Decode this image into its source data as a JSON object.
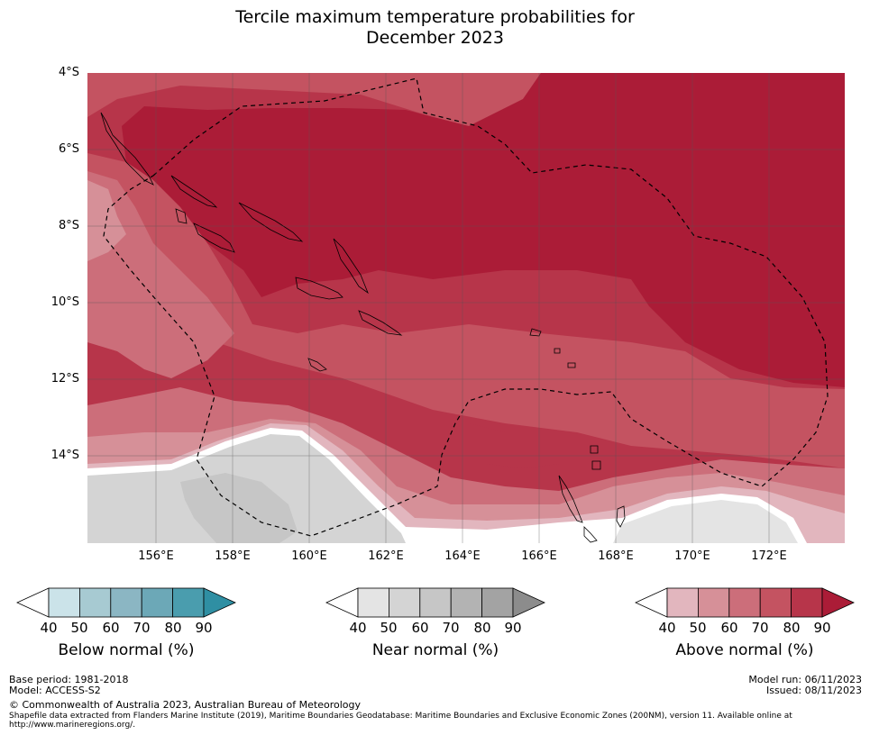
{
  "title_line1": "Tercile maximum temperature probabilities for",
  "title_line2": "December 2023",
  "lat_labels": [
    "4°S",
    "6°S",
    "8°S",
    "10°S",
    "12°S",
    "14°S"
  ],
  "lon_labels": [
    "156°E",
    "158°E",
    "160°E",
    "162°E",
    "164°E",
    "166°E",
    "168°E",
    "170°E",
    "172°E"
  ],
  "colorbars": [
    {
      "label": "Below normal (%)",
      "ticks": [
        "40",
        "50",
        "60",
        "70",
        "80",
        "90"
      ],
      "colors": [
        "#cbe3e9",
        "#a7cad2",
        "#8bb6c3",
        "#6ca8b7",
        "#4a9dae"
      ],
      "over": "#2f8fa3"
    },
    {
      "label": "Near normal (%)",
      "ticks": [
        "40",
        "50",
        "60",
        "70",
        "80",
        "90"
      ],
      "colors": [
        "#e4e4e4",
        "#d4d4d4",
        "#c6c6c6",
        "#b3b3b3",
        "#a3a3a3"
      ],
      "over": "#8c8c8c"
    },
    {
      "label": "Above normal (%)",
      "ticks": [
        "40",
        "50",
        "60",
        "70",
        "80",
        "90"
      ],
      "colors": [
        "#e2b6be",
        "#d69098",
        "#cc6e7a",
        "#c45361",
        "#b7354a"
      ],
      "over": "#ab1c37"
    }
  ],
  "footer": {
    "base_period": "Base period: 1981-2018",
    "model": "Model: ACCESS-S2",
    "model_run": "Model run: 06/11/2023",
    "issued": "Issued: 08/11/2023",
    "copyright": "© Commonwealth of Australia 2023, Australian Bureau of Meteorology",
    "shapefile": "Shapefile data extracted from Flanders Marine Institute (2019), Maritime Boundaries Geodatabase: Maritime Boundaries and Exclusive Economic Zones (200NM), version 11. Available online at http://www.marineregions.org/."
  },
  "map_colors": {
    "above_40": "#e2b6be",
    "above_50": "#d69098",
    "above_60": "#cc6e7a",
    "above_70": "#c45361",
    "above_80": "#b7354a",
    "above_90": "#ab1c37",
    "near_40": "#e4e4e4",
    "near_50": "#d4d4d4",
    "near_60": "#c6c6c6"
  }
}
